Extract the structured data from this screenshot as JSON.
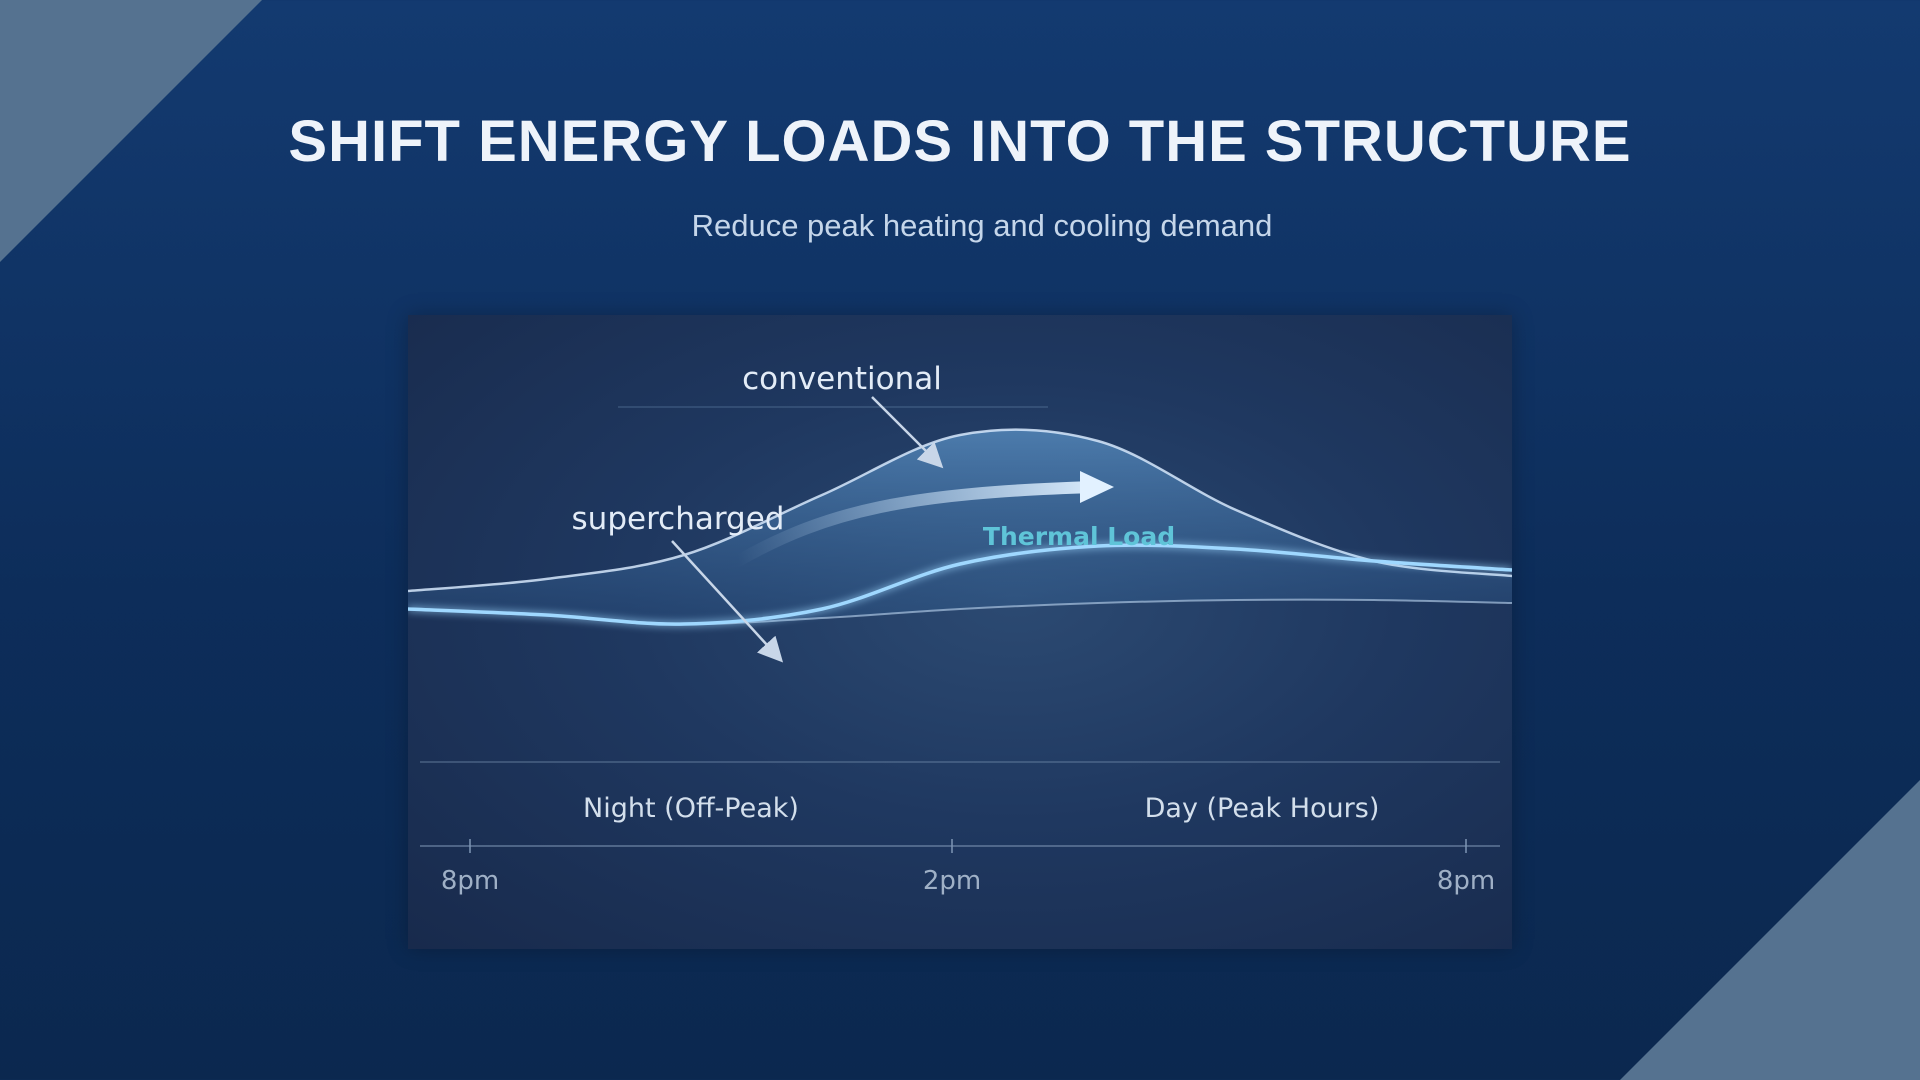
{
  "slide": {
    "title": "SHIFT ENERGY LOADS INTO THE STRUCTURE",
    "subtitle": "Reduce peak heating and cooling demand"
  },
  "colors": {
    "background": "#0f3364",
    "corner_accent": "#557290",
    "text_primary": "#eef3fa",
    "text_secondary": "#c5d6ea",
    "thermal_label": "#5fc4d8",
    "curve_glow": "#8fd0ff"
  },
  "chart_data": {
    "type": "area",
    "title": "",
    "xlabel": "",
    "ylabel": "",
    "x_ticks": [
      "8pm",
      "2pm",
      "8pm"
    ],
    "x": [
      0,
      3,
      6,
      9,
      12,
      15,
      18,
      21,
      24
    ],
    "ylim": [
      0,
      1
    ],
    "grid": false,
    "series": [
      {
        "name": "conventional",
        "values": [
          0.28,
          0.32,
          0.4,
          0.6,
          0.8,
          0.78,
          0.55,
          0.38,
          0.33
        ]
      },
      {
        "name": "supercharged",
        "values": [
          0.22,
          0.2,
          0.17,
          0.22,
          0.37,
          0.43,
          0.42,
          0.38,
          0.35
        ]
      }
    ],
    "baseline": [
      0.22,
      0.2,
      0.17,
      0.19,
      0.22,
      0.24,
      0.25,
      0.25,
      0.24
    ],
    "annotations": {
      "conventional": "conventional",
      "supercharged": "supercharged",
      "area_label": "Thermal Load"
    },
    "bands": [
      {
        "label": "Night (Off-Peak)",
        "range": [
          0,
          12
        ]
      },
      {
        "label": "Day (Peak Hours)",
        "range": [
          12,
          24
        ]
      }
    ]
  }
}
